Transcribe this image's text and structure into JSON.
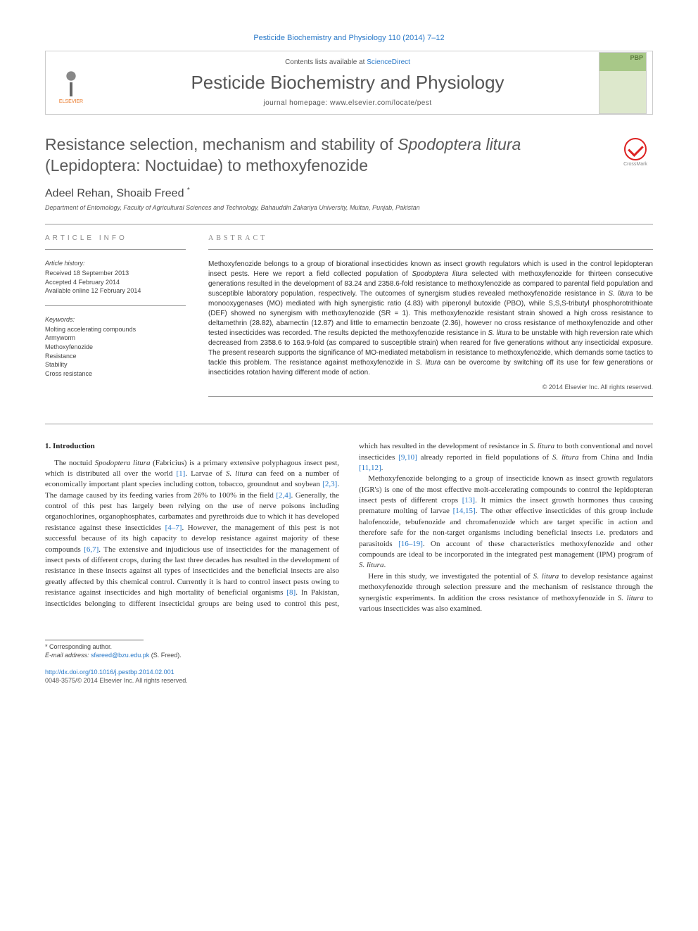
{
  "journal_ref": "Pesticide Biochemistry and Physiology 110 (2014) 7–12",
  "header": {
    "contents_prefix": "Contents lists available at ",
    "contents_link": "ScienceDirect",
    "journal_name": "Pesticide Biochemistry and Physiology",
    "homepage_prefix": "journal homepage: ",
    "homepage_url": "www.elsevier.com/locate/pest",
    "publisher_name": "ELSEVIER"
  },
  "title_html": "Resistance selection, mechanism and stability of <em>Spodoptera litura</em> (Lepidoptera: Noctuidae) to methoxyfenozide",
  "crossmark_label": "CrossMark",
  "authors_html": "Adeel Rehan, Shoaib Freed <sup>*</sup>",
  "affiliation": "Department of Entomology, Faculty of Agricultural Sciences and Technology, Bahauddin Zakariya University, Multan, Punjab, Pakistan",
  "article_info": {
    "header": "ARTICLE INFO",
    "history_label": "Article history:",
    "history": [
      "Received 18 September 2013",
      "Accepted 4 February 2014",
      "Available online 12 February 2014"
    ],
    "keywords_label": "Keywords:",
    "keywords": [
      "Molting accelerating compounds",
      "Armyworm",
      "Methoxyfenozide",
      "Resistance",
      "Stability",
      "Cross resistance"
    ]
  },
  "abstract": {
    "header": "ABSTRACT",
    "text_html": "Methoxyfenozide belongs to a group of biorational insecticides known as insect growth regulators which is used in the control lepidopteran insect pests. Here we report a field collected population of <em>Spodoptera litura</em> selected with methoxyfenozide for thirteen consecutive generations resulted in the development of 83.24 and 2358.6-fold resistance to methoxyfenozide as compared to parental field population and susceptible laboratory population, respectively. The outcomes of synergism studies revealed methoxyfenozide resistance in <em>S. litura</em> to be monooxygenases (MO) mediated with high synergistic ratio (4.83) with piperonyl butoxide (PBO), while S,S,S-tributyl phosphorotrithioate (DEF) showed no synergism with methoxyfenozide (SR = 1). This methoxyfenozide resistant strain showed a high cross resistance to deltamethrin (28.82), abamectin (12.87) and little to emamectin benzoate (2.36), however no cross resistance of methoxyfenozide and other tested insecticides was recorded. The results depicted the methoxyfenozide resistance in <em>S. litura</em> to be unstable with high reversion rate which decreased from 2358.6 to 163.9-fold (as compared to susceptible strain) when reared for five generations without any insecticidal exposure. The present research supports the significance of MO-mediated metabolism in resistance to methoxyfenozide, which demands some tactics to tackle this problem. The resistance against methoxyfenozide in <em>S. litura</em> can be overcome by switching off its use for few generations or insecticides rotation having different mode of action.",
    "copyright": "© 2014 Elsevier Inc. All rights reserved."
  },
  "intro": {
    "heading": "1. Introduction",
    "p1_html": "The noctuid <em>Spodoptera litura</em> (Fabricius) is a primary extensive polyphagous insect pest, which is distributed all over the world <a href='#'>[1]</a>. Larvae of <em>S. litura</em> can feed on a number of economically important plant species including cotton, tobacco, groundnut and soybean <a href='#'>[2,3]</a>. The damage caused by its feeding varies from 26% to 100% in the field <a href='#'>[2,4]</a>. Generally, the control of this pest has largely been relying on the use of nerve poisons including organochlorines, organophosphates, carbamates and pyrethroids due to which it has developed resistance against these insecticides <a href='#'>[4–7]</a>. However, the management of this pest is not successful because of its high capacity to develop resistance against majority of these compounds <a href='#'>[6,7]</a>. The extensive and injudicious use of insecticides for the management of insect pests of different crops, during the last three decades has resulted in the development of resistance in these insects against all types of insecticides and the beneficial insects are also greatly affected by this chemical control. Currently it is hard to control insect pests owing to resistance against insecticides and high mortality of beneficial organisms <a href='#'>[8]</a>. In Pakistan, insecticides belonging to different insecticidal groups are being used to control this pest, which has resulted in the development of resistance in <em>S. litura</em> to both conventional and novel insecticides <a href='#'>[9,10]</a> already reported in field populations of <em>S. litura</em> from China and India <a href='#'>[11,12]</a>.",
    "p2_html": "Methoxyfenozide belonging to a group of insecticide known as insect growth regulators (IGR's) is one of the most effective molt-accelerating compounds to control the lepidopteran insect pests of different crops <a href='#'>[13]</a>. It mimics the insect growth hormones thus causing premature molting of larvae <a href='#'>[14,15]</a>. The other effective insecticides of this group include halofenozide, tebufenozide and chromafenozide which are target specific in action and therefore safe for the non-target organisms including beneficial insects i.e. predators and parasitoids <a href='#'>[16–19]</a>. On account of these characteristics methoxyfenozide and other compounds are ideal to be incorporated in the integrated pest management (IPM) program of <em>S. litura</em>.",
    "p3_html": "Here in this study, we investigated the potential of <em>S. litura</em> to develop resistance against methoxyfenozide through selection pressure and the mechanism of resistance through the synergistic experiments. In addition the cross resistance of methoxyfenozide in <em>S. litura</em> to various insecticides was also examined."
  },
  "footer": {
    "corresponding": "* Corresponding author.",
    "email_label": "E-mail address: ",
    "email": "sfareed@bzu.edu.pk",
    "email_suffix": " (S. Freed).",
    "doi_url": "http://dx.doi.org/10.1016/j.pestbp.2014.02.001",
    "issn_line": "0048-3575/© 2014 Elsevier Inc. All rights reserved."
  },
  "colors": {
    "link": "#2878c8",
    "elsevier_orange": "#e9711c",
    "heading_gray": "#5a5a5a",
    "text": "#333333"
  }
}
